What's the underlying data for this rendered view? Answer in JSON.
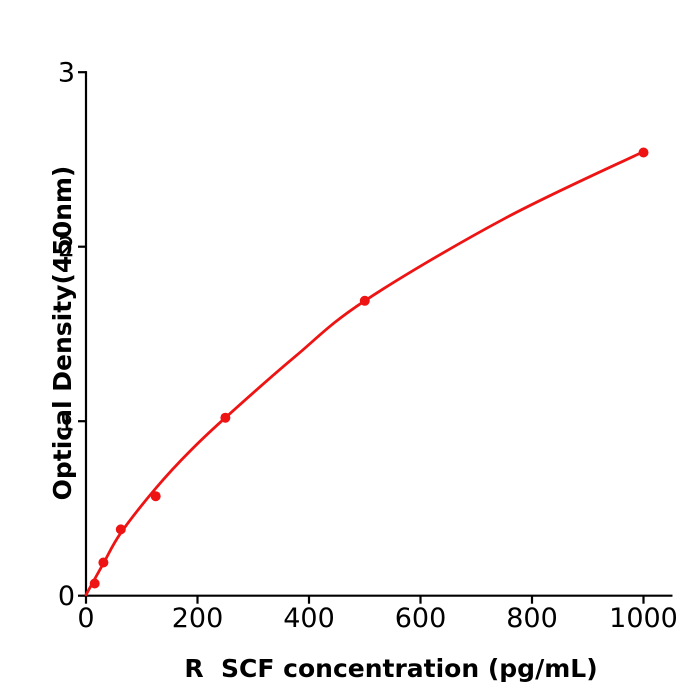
{
  "figure": {
    "background": "#ffffff"
  },
  "chart_data": {
    "type": "scatter",
    "title": "",
    "xlabel": "R  SCF concentration (pg/mL)",
    "ylabel": "Optical Density(450nm)",
    "xlim": [
      0,
      1050
    ],
    "ylim": [
      0,
      3
    ],
    "x_ticks": [
      0,
      200,
      400,
      600,
      800,
      1000
    ],
    "y_ticks": [
      0,
      1,
      2,
      3
    ],
    "grid": false,
    "legend": false,
    "axis_color": "#000000",
    "marker_color": "#ee1414",
    "line_color": "#ee1414",
    "series": [
      {
        "marker": "circle",
        "x": [
          15.6,
          31.25,
          62.5,
          125,
          250,
          500,
          1000
        ],
        "y": [
          0.07,
          0.19,
          0.38,
          0.57,
          1.02,
          1.69,
          2.54
        ]
      }
    ],
    "fit_curve": {
      "x": [
        0,
        31.25,
        62.5,
        125,
        187,
        250,
        375,
        500,
        750,
        1000
      ],
      "y": [
        0.005,
        0.185,
        0.36,
        0.615,
        0.83,
        1.02,
        1.37,
        1.69,
        2.16,
        2.545
      ]
    }
  }
}
